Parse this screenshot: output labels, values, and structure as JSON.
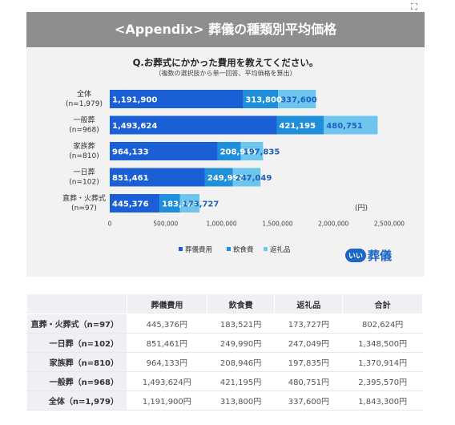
{
  "banner": {
    "title": "<Appendix> 葬儀の種類別平均価格"
  },
  "question": {
    "title": "Q.お葬式にかかった費用を教えてください。",
    "subtitle": "（複数の選択肢から単一回答、平均価格を算出）"
  },
  "colors": {
    "funeral": "#1a5fd6",
    "food": "#1f8fdb",
    "gift": "#6ec6ef",
    "gift_text": "#1f5fbf"
  },
  "logo": {
    "badge": "いい",
    "text": "葬儀"
  },
  "chart_data": {
    "type": "bar",
    "orientation": "horizontal",
    "stacked": true,
    "categories": [
      "全体\n(n=1,979)",
      "一般葬\n(n=968)",
      "家族葬\n(n=810)",
      "一日葬\n(n=102)",
      "直葬・火葬式\n(n=97)"
    ],
    "category_lines": [
      [
        "全体",
        "(n=1,979)"
      ],
      [
        "一般葬",
        "(n=968)"
      ],
      [
        "家族葬",
        "(n=810)"
      ],
      [
        "一日葬",
        "(n=102)"
      ],
      [
        "直葬・火葬式",
        "(n=97)"
      ]
    ],
    "series": [
      {
        "name": "葬儀費用",
        "values": [
          1191900,
          1493624,
          964133,
          851461,
          445376
        ],
        "labels": [
          "1,191,900",
          "1,493,624",
          "964,133",
          "851,461",
          "445,376"
        ]
      },
      {
        "name": "飲食費",
        "values": [
          313800,
          421195,
          208946,
          249990,
          183521
        ],
        "labels": [
          "313,800",
          "421,195",
          "208,946",
          "249,990",
          "183,521"
        ]
      },
      {
        "name": "返礼品",
        "values": [
          337600,
          480751,
          197835,
          247049,
          173727
        ],
        "labels": [
          "337,600",
          "480,751",
          "197,835",
          "247,049",
          "173,727"
        ]
      }
    ],
    "xlim": [
      0,
      2500000
    ],
    "x_ticks": [
      0,
      500000,
      1000000,
      1500000,
      2000000,
      2500000
    ],
    "x_tick_labels": [
      "0",
      "500,000",
      "1,000,000",
      "1,500,000",
      "2,000,000",
      "2,500,000"
    ],
    "unit": "(円)",
    "legend_position": "bottom",
    "grid": false
  },
  "table": {
    "headers": [
      "",
      "葬儀費用",
      "飲食費",
      "返礼品",
      "合計"
    ],
    "rows": [
      {
        "label": "直葬・火葬式（n=97）",
        "cells": [
          "445,376円",
          "183,521円",
          "173,727円",
          "802,624円"
        ]
      },
      {
        "label": "一日葬（n=102）",
        "cells": [
          "851,461円",
          "249,990円",
          "247,049円",
          "1,348,500円"
        ]
      },
      {
        "label": "家族葬（n=810）",
        "cells": [
          "964,133円",
          "208,946円",
          "197,835円",
          "1,370,914円"
        ]
      },
      {
        "label": "一般葬（n=968）",
        "cells": [
          "1,493,624円",
          "421,195円",
          "480,751円",
          "2,395,570円"
        ]
      },
      {
        "label": "全体（n=1,979）",
        "cells": [
          "1,191,900円",
          "313,800円",
          "337,600円",
          "1,843,300円"
        ]
      }
    ]
  }
}
